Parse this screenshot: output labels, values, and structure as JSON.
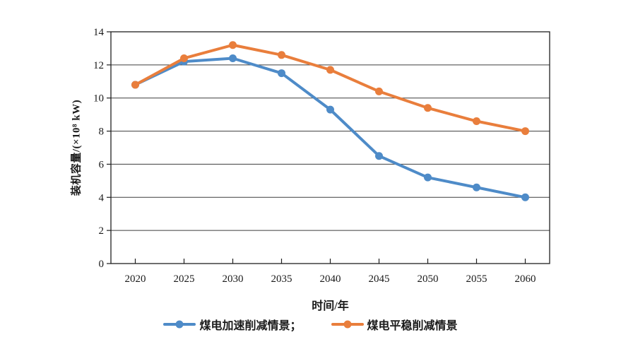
{
  "chart_data": {
    "type": "line",
    "title": "",
    "xlabel": "时间/年",
    "ylabel": "装机容量/(×10⁸ kW)",
    "x": [
      2020,
      2025,
      2030,
      2035,
      2040,
      2045,
      2050,
      2055,
      2060
    ],
    "series": [
      {
        "name": "煤电加速削减情景",
        "color": "#4E8BC8",
        "values": [
          10.8,
          12.2,
          12.4,
          11.5,
          9.3,
          6.5,
          5.2,
          4.6,
          4.0
        ]
      },
      {
        "name": "煤电平稳削减情景",
        "color": "#E97E3C",
        "values": [
          10.8,
          12.4,
          13.2,
          12.6,
          11.7,
          10.4,
          9.4,
          8.6,
          8.0
        ]
      }
    ],
    "ylim": [
      0,
      14
    ],
    "ytick_step": 2,
    "grid": true,
    "legend_position": "bottom",
    "legend": [
      {
        "label": "煤电加速削减情景；",
        "color": "#4E8BC8"
      },
      {
        "label": "煤电平稳削减情景",
        "color": "#E97E3C"
      }
    ],
    "axis_color": "#1f1f1f",
    "gridline_color": "#3d3d3d",
    "tick_label_color": "#1a1a1a"
  }
}
